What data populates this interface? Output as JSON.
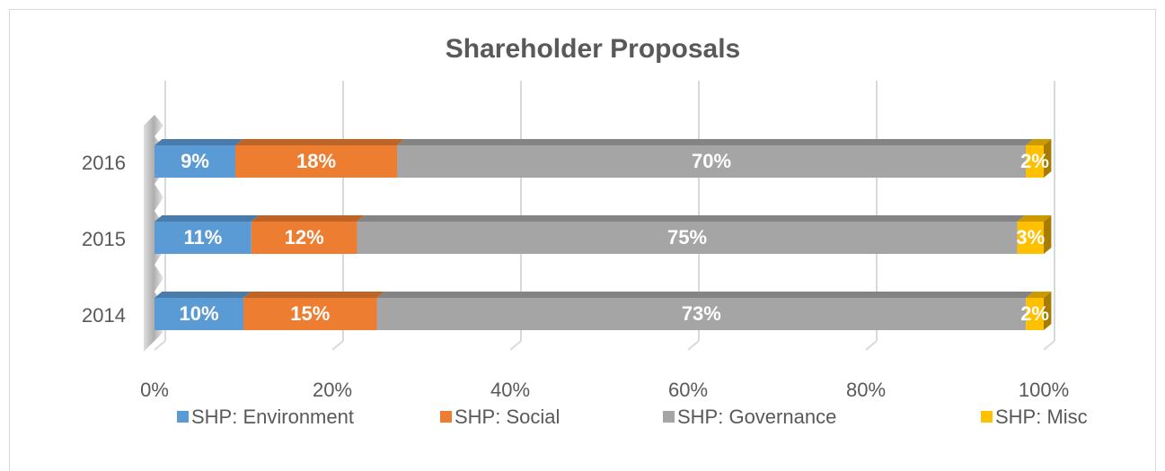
{
  "chart_data": {
    "type": "bar",
    "orientation": "horizontal",
    "stacked": "percent",
    "title": "Shareholder Proposals",
    "categories": [
      "2014",
      "2015",
      "2016"
    ],
    "series": [
      {
        "name": "SHP: Environment",
        "color": "#5b9bd5",
        "values": [
          10,
          11,
          9
        ],
        "value_labels": [
          "10%",
          "11%",
          "9%"
        ]
      },
      {
        "name": "SHP: Social",
        "color": "#ed7d31",
        "values": [
          15,
          12,
          18
        ],
        "value_labels": [
          "15%",
          "12%",
          "18%"
        ]
      },
      {
        "name": "SHP: Governance",
        "color": "#a5a5a5",
        "values": [
          73,
          75,
          70
        ],
        "value_labels": [
          "73%",
          "75%",
          "70%"
        ]
      },
      {
        "name": "SHP: Misc",
        "color": "#ffc000",
        "values": [
          2,
          3,
          2
        ],
        "value_labels": [
          "2%",
          "3%",
          "2%"
        ]
      }
    ],
    "xlim": [
      0,
      100
    ],
    "xticks": [
      {
        "value": 0,
        "label": "0%"
      },
      {
        "value": 20,
        "label": "20%"
      },
      {
        "value": 40,
        "label": "40%"
      },
      {
        "value": 60,
        "label": "60%"
      },
      {
        "value": 80,
        "label": "80%"
      },
      {
        "value": 100,
        "label": "100%"
      }
    ],
    "grid": true,
    "legend": "bottom"
  }
}
